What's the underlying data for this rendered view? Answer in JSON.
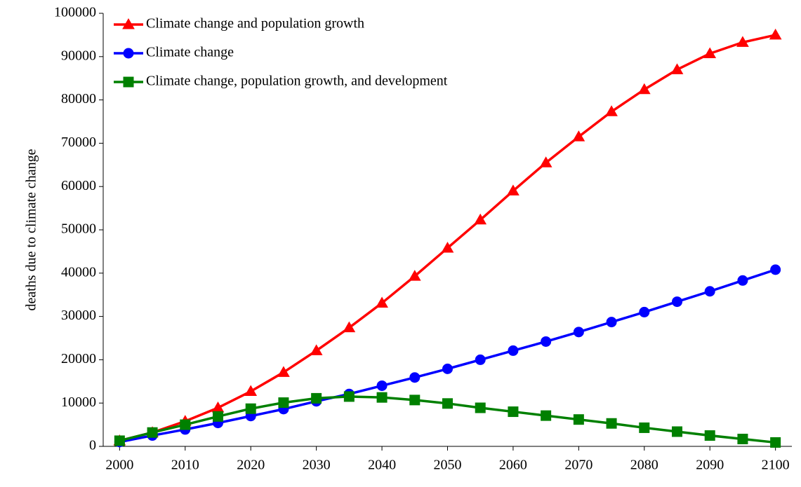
{
  "chart_data": {
    "type": "line",
    "y_label": "deaths due to climate change",
    "x": [
      2000,
      2005,
      2010,
      2015,
      2020,
      2025,
      2030,
      2035,
      2040,
      2045,
      2050,
      2055,
      2060,
      2065,
      2070,
      2075,
      2080,
      2085,
      2090,
      2095,
      2100
    ],
    "xlim": [
      1997.5,
      2102.5
    ],
    "xticks": [
      2000,
      2010,
      2020,
      2030,
      2040,
      2050,
      2060,
      2070,
      2080,
      2090,
      2100
    ],
    "ylim": [
      0,
      100000
    ],
    "yticks": [
      0,
      10000,
      20000,
      30000,
      40000,
      50000,
      60000,
      70000,
      80000,
      90000,
      100000
    ],
    "legend": "upper left",
    "series": [
      {
        "name": "Climate change and population growth",
        "color": "#ff0000",
        "marker": "triangle",
        "values": [
          1300,
          3200,
          5800,
          8900,
          12700,
          17100,
          22100,
          27400,
          33100,
          39300,
          45800,
          52300,
          59000,
          65500,
          71500,
          77300,
          82400,
          87000,
          90700,
          93300,
          95000
        ]
      },
      {
        "name": "Climate change",
        "color": "#0000ff",
        "marker": "circle",
        "values": [
          1000,
          2500,
          3900,
          5400,
          7000,
          8600,
          10400,
          12100,
          14000,
          15900,
          17900,
          20000,
          22100,
          24200,
          26400,
          28700,
          31000,
          33400,
          35800,
          38300,
          40800
        ]
      },
      {
        "name": "Climate change, population growth, and development",
        "color": "#008000",
        "marker": "square",
        "values": [
          1300,
          3200,
          5000,
          6900,
          8700,
          10100,
          11100,
          11500,
          11300,
          10700,
          9900,
          8900,
          8000,
          7100,
          6200,
          5300,
          4300,
          3400,
          2500,
          1700,
          900
        ]
      }
    ]
  }
}
